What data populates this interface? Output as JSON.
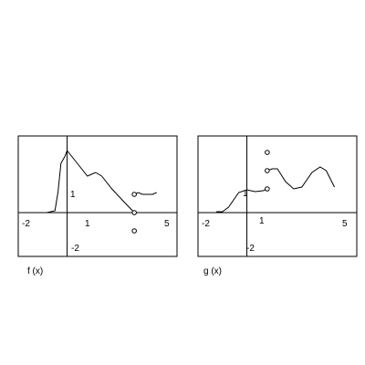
{
  "chart_data": [
    {
      "type": "line",
      "title": "f (x)",
      "frame": {
        "xlim": [
          -2.4,
          5.4
        ],
        "ylim": [
          -2.4,
          4.2
        ]
      },
      "ticks": {
        "x_neg": "-2",
        "x_one": "1",
        "x_five": "5",
        "y_one": "1",
        "y_neg": "-2"
      },
      "series": [
        {
          "x": [
            -1.0,
            -0.6,
            -0.45,
            -0.3,
            -0.1,
            0.0,
            0.5,
            1.0,
            1.2,
            1.4,
            1.7,
            2.2,
            2.7,
            3.3
          ],
          "y": [
            0.0,
            0.1,
            1.1,
            2.7,
            3.1,
            3.4,
            2.7,
            2.0,
            2.1,
            2.2,
            2.0,
            1.3,
            0.7,
            0.0
          ]
        },
        {
          "x": [
            3.3,
            3.5,
            3.7,
            4.2,
            4.4
          ],
          "y": [
            1.0,
            1.1,
            1.0,
            1.0,
            1.1
          ]
        }
      ],
      "points": [
        {
          "x": 3.3,
          "y": 1.0,
          "filled": false
        },
        {
          "x": 3.3,
          "y": 0.0,
          "filled": false
        },
        {
          "x": 3.3,
          "y": -1.0,
          "filled": false
        }
      ]
    },
    {
      "type": "line",
      "title": "g (x)",
      "frame": {
        "xlim": [
          -2.4,
          5.4
        ],
        "ylim": [
          -2.4,
          4.2
        ]
      },
      "ticks": {
        "x_neg": "-2",
        "x_one": "1",
        "x_five": "5",
        "y_one": "1",
        "y_neg": "-2"
      },
      "series": [
        {
          "x": [
            -1.5,
            -1.2,
            -0.9,
            -0.4,
            0.0,
            0.4,
            0.8,
            1.0
          ],
          "y": [
            0.05,
            0.05,
            0.3,
            1.1,
            1.25,
            1.15,
            1.2,
            1.3
          ]
        },
        {
          "x": [
            1.0,
            1.25,
            1.5,
            1.9,
            2.3,
            2.7,
            3.2,
            3.6,
            3.9,
            4.3
          ],
          "y": [
            2.3,
            2.4,
            2.4,
            1.7,
            1.3,
            1.4,
            2.2,
            2.5,
            2.3,
            1.4
          ]
        }
      ],
      "points": [
        {
          "x": 1.0,
          "y": 3.3,
          "filled": false
        },
        {
          "x": 1.0,
          "y": 2.3,
          "filled": false
        },
        {
          "x": 1.0,
          "y": 1.3,
          "filled": false
        }
      ]
    }
  ]
}
